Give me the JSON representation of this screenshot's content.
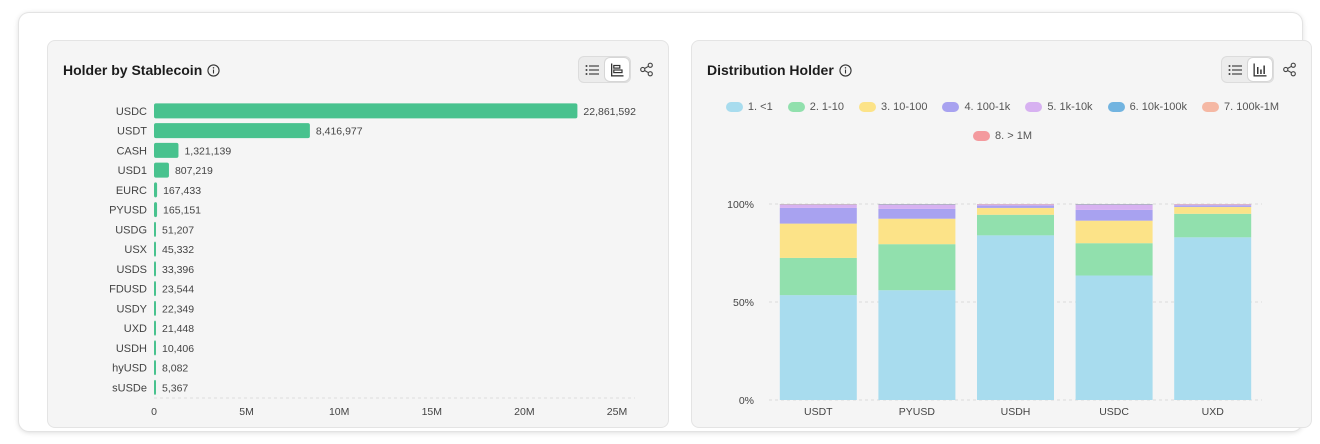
{
  "left_card": {
    "title": "Holder by Stablecoin",
    "info_icon": "info-circle-icon",
    "toggle_icons": [
      "list-icon",
      "bar-chart-icon"
    ],
    "share_icon": "share-icon"
  },
  "right_card": {
    "title": "Distribution Holder",
    "info_icon": "info-circle-icon",
    "toggle_icons": [
      "list-icon",
      "column-chart-icon"
    ],
    "share_icon": "share-icon"
  },
  "colors": {
    "bar": "#48c28e",
    "segments": [
      "#a8dcee",
      "#91e0ad",
      "#fce388",
      "#a8a2f0",
      "#d7b1f1",
      "#72b4e0",
      "#f5b8a4",
      "#f49a9e"
    ]
  },
  "chart_data": [
    {
      "type": "bar",
      "orientation": "horizontal",
      "categories": [
        "USDC",
        "USDT",
        "CASH",
        "USD1",
        "EURC",
        "PYUSD",
        "USDG",
        "USX",
        "USDS",
        "FDUSD",
        "USDY",
        "UXD",
        "USDH",
        "hyUSD",
        "sUSDe"
      ],
      "values": [
        22861592,
        8416977,
        1321139,
        807219,
        167433,
        165151,
        51207,
        45332,
        33396,
        23544,
        22349,
        21448,
        10406,
        8082,
        5367
      ],
      "value_labels": [
        "22,861,592",
        "8,416,977",
        "1,321,139",
        "807,219",
        "167,433",
        "165,151",
        "51,207",
        "45,332",
        "33,396",
        "23,544",
        "22,349",
        "21,448",
        "10,406",
        "8,082",
        "5,367"
      ],
      "xlim": [
        0,
        25000000
      ],
      "xticks": [
        0,
        5000000,
        10000000,
        15000000,
        20000000,
        25000000
      ],
      "xtick_labels": [
        "0",
        "5M",
        "10M",
        "15M",
        "20M",
        "25M"
      ],
      "grid": false
    },
    {
      "type": "bar",
      "stacking": "percent",
      "categories": [
        "USDT",
        "PYUSD",
        "USDH",
        "USDC",
        "UXD"
      ],
      "series": [
        {
          "name": "1. <1",
          "values": [
            53.5,
            56,
            84,
            63.5,
            83
          ]
        },
        {
          "name": "2. 1-10",
          "values": [
            19,
            23.5,
            10.5,
            16.5,
            12
          ]
        },
        {
          "name": "3. 10-100",
          "values": [
            17.5,
            13,
            3.5,
            11.5,
            3.5
          ]
        },
        {
          "name": "4. 100-1k",
          "values": [
            8,
            5,
            1.2,
            5.5,
            0.8
          ]
        },
        {
          "name": "5. 1k-10k",
          "values": [
            1.6,
            2,
            0.5,
            2.5,
            0.4
          ]
        },
        {
          "name": "6. 10k-100k",
          "values": [
            0.2,
            0.3,
            0.2,
            0.3,
            0.15
          ]
        },
        {
          "name": "7. 100k-1M",
          "values": [
            0.1,
            0.1,
            0.05,
            0.1,
            0.05
          ]
        },
        {
          "name": "8. > 1M",
          "values": [
            0.1,
            0.1,
            0.05,
            0.1,
            0.1
          ]
        }
      ],
      "ylim": [
        0,
        100
      ],
      "yticks": [
        0,
        50,
        100
      ],
      "ytick_labels": [
        "0%",
        "50%",
        "100%"
      ],
      "legend_position": "top",
      "grid": true
    }
  ]
}
